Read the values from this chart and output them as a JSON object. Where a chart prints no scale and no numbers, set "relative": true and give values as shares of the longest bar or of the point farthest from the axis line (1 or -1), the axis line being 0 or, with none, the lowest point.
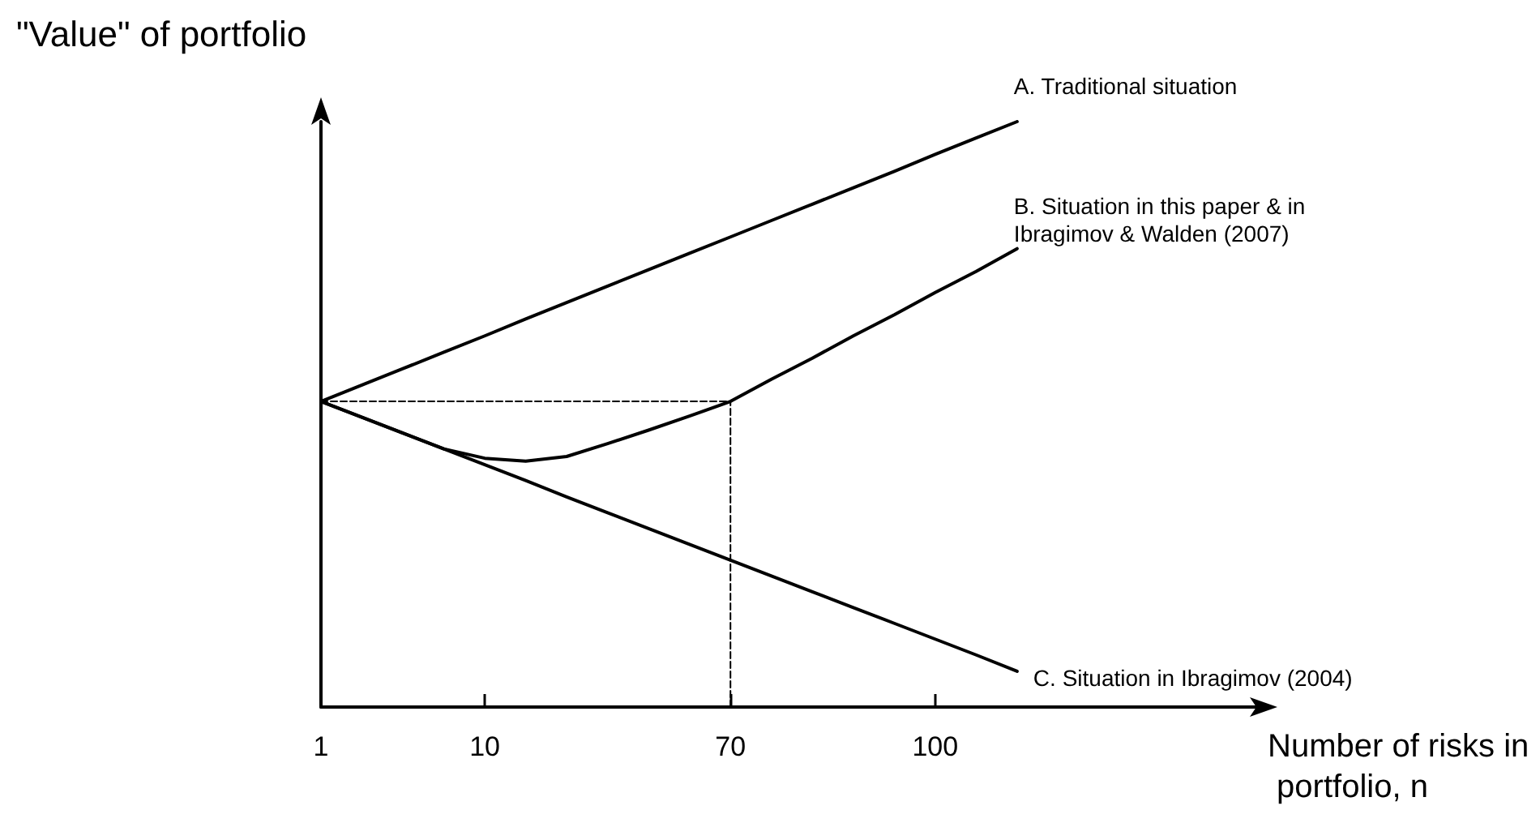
{
  "chart_data": {
    "type": "line",
    "relative": true,
    "xlabel": "Number of risks in portfolio, n",
    "ylabel": "\"Value\" of portfolio",
    "categories": [
      "1",
      null,
      null,
      null,
      "10",
      null,
      null,
      null,
      null,
      null,
      "70",
      null,
      null,
      null,
      null,
      "100",
      null,
      null,
      null,
      null,
      null,
      null,
      null,
      null
    ],
    "series": [
      {
        "name": "A. Traditional situation",
        "color": "#000000",
        "values": [
          0.522,
          0.55,
          0.578,
          0.606,
          0.634,
          0.663,
          0.691,
          0.719,
          0.747,
          0.775,
          0.803,
          0.831,
          0.859,
          0.887,
          0.915,
          0.944,
          0.972,
          1.0,
          null,
          null,
          null,
          null,
          null,
          null
        ]
      },
      {
        "name": "B. Situation in this paper & in Ibragimov & Walden (2007)",
        "color": "#000000",
        "values": [
          0.522,
          0.495,
          0.468,
          0.441,
          0.425,
          0.42,
          0.428,
          0.45,
          0.473,
          0.497,
          0.522,
          0.56,
          0.596,
          0.634,
          0.67,
          0.708,
          0.744,
          0.783,
          null,
          null,
          null,
          null,
          null,
          null
        ]
      },
      {
        "name": "C. Situation in Ibragimov (2004)",
        "color": "#000000",
        "values": [
          0.522,
          0.495,
          0.468,
          0.441,
          0.414,
          0.387,
          0.359,
          0.332,
          0.305,
          0.278,
          0.251,
          0.224,
          0.197,
          0.17,
          0.143,
          0.116,
          0.089,
          0.061,
          null,
          null,
          null,
          null,
          null,
          null
        ]
      },
      {
        "color": "#000000",
        "line_style": "dashed",
        "x": [
          "1",
          "70"
        ],
        "values": [
          0.522,
          0.522
        ]
      },
      {
        "color": "#000000",
        "line_style": "dashed",
        "x": [
          "70",
          "70"
        ],
        "values": [
          0,
          0.522
        ]
      }
    ],
    "marker": "none",
    "line_style": "solid",
    "grid": false,
    "legend": false
  }
}
